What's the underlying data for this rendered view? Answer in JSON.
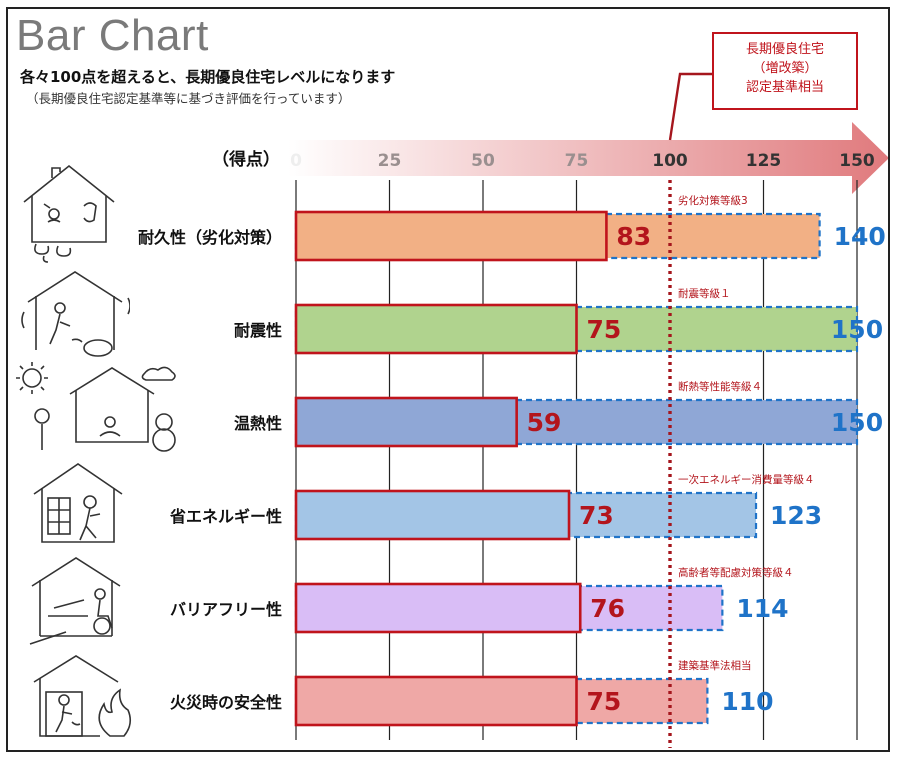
{
  "title": "Bar Chart",
  "subtitle": "各々100点を超えると、長期優良住宅レベルになります",
  "note": "（長期優良住宅認定基準等に基づき評価を行っています）",
  "callout": {
    "line1": "長期優良住宅",
    "line2": "（増改築）",
    "line3": "認定基準相当"
  },
  "colors": {
    "current_border": "#c0141c",
    "target_border": "#1f73c8",
    "current_label": "#b3151c",
    "target_label": "#1f73c8",
    "threshold_line": "#a5161d",
    "arrow_start": "#ffffff",
    "arrow_end": "#e07a7d"
  },
  "chart_data": {
    "type": "bar",
    "orientation": "horizontal",
    "axis_label": "（得点）",
    "ticks": [
      0,
      25,
      50,
      75,
      100,
      125,
      150
    ],
    "xlim": [
      0,
      150
    ],
    "threshold": 100,
    "categories": [
      "耐久性（劣化対策）",
      "耐震性",
      "温熱性",
      "省エネルギー性",
      "バリアフリー性",
      "火災時の安全性"
    ],
    "current": [
      83,
      75,
      59,
      73,
      76,
      75
    ],
    "target": [
      140,
      150,
      150,
      123,
      114,
      110
    ],
    "target_notes": [
      "劣化対策等級3",
      "耐震等級１",
      "断熱等性能等級４",
      "一次エネルギー消費量等級４",
      "高齢者等配慮対策等級４",
      "建築基準法相当"
    ],
    "fill_colors": [
      "#f2b085",
      "#b0d38e",
      "#8fa7d6",
      "#a3c5e6",
      "#d9bdf6",
      "#efa8a6"
    ],
    "grid": true
  },
  "icons": [
    "house-decay-icon",
    "house-earthquake-icon",
    "house-thermal-icon",
    "house-energy-icon",
    "house-barrierfree-icon",
    "house-fire-icon"
  ]
}
